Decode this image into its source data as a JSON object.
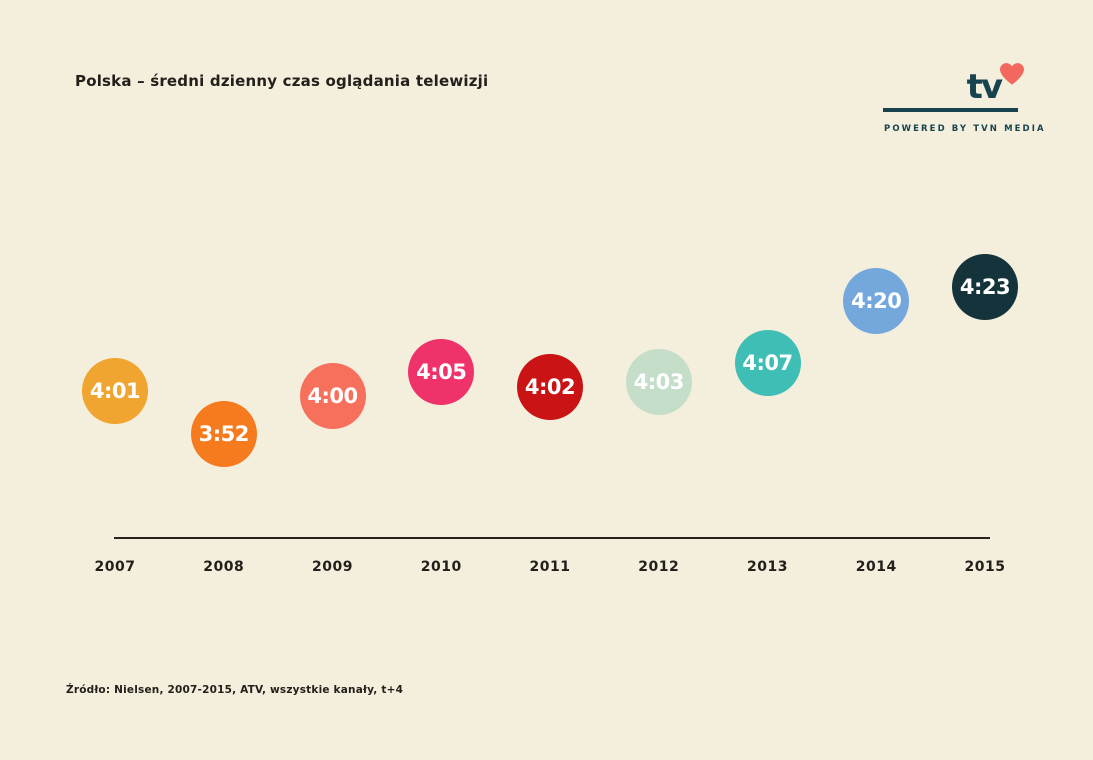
{
  "page": {
    "background_color": "#F4EEDD",
    "text_color": "#23201B"
  },
  "header": {
    "title": "Polska – średni dzienny czas oglądania telewizji"
  },
  "logo": {
    "tv_text": "tv",
    "heart_icon": "heart",
    "heart_color": "#F2685F",
    "navy_color": "#17434F",
    "tagline": "POWERED BY TVN MEDIA"
  },
  "chart_data": {
    "type": "scatter",
    "title": "Polska – średni dzienny czas oglądania telewizji",
    "categories": [
      "2007",
      "2008",
      "2009",
      "2010",
      "2011",
      "2012",
      "2013",
      "2014",
      "2015"
    ],
    "series": [
      {
        "name": "ATV",
        "labels": [
          "4:01",
          "3:52",
          "4:00",
          "4:05",
          "4:02",
          "4:03",
          "4:07",
          "4:20",
          "4:23"
        ],
        "minutes": [
          241,
          232,
          240,
          245,
          242,
          243,
          247,
          260,
          263
        ],
        "colors": [
          "#EFA52F",
          "#F67B1F",
          "#F7705B",
          "#F0326B",
          "#C91315",
          "#C4DECA",
          "#3FBEB5",
          "#74A7DC",
          "#14333B"
        ]
      }
    ],
    "value_format": "g:mm",
    "grid": false,
    "legend": false,
    "baseline_axis": "x",
    "ylim_minutes": [
      225,
      270
    ]
  },
  "footer": {
    "source": "Źródło: Nielsen, 2007-2015, ATV, wszystkie kanały, t+4"
  }
}
